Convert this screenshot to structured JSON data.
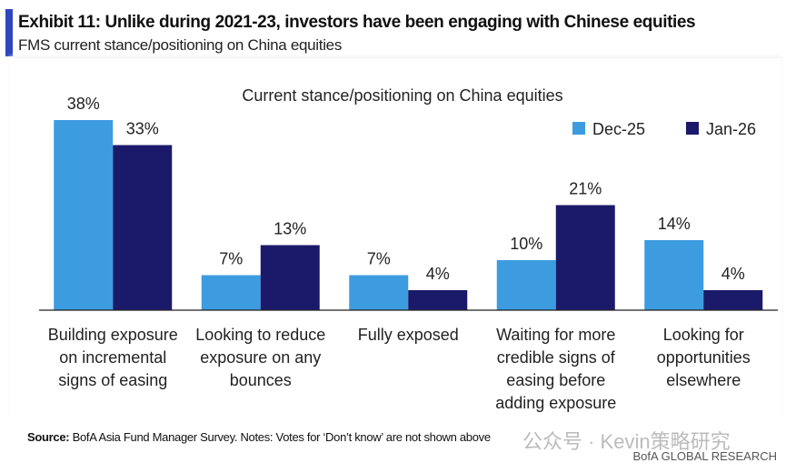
{
  "header": {
    "title": "Exhibit 11: Unlike during 2021-23, investors have been engaging with Chinese equities",
    "subtitle": "FMS current stance/positioning on China equities"
  },
  "chart_data": {
    "type": "bar",
    "title": "Current stance/positioning on China equities",
    "categories": [
      [
        "Building exposure",
        "on incremental",
        "signs of easing"
      ],
      [
        "Looking to reduce",
        "exposure on any",
        "bounces"
      ],
      [
        "Fully exposed"
      ],
      [
        "Waiting for more",
        "credible signs of",
        "easing before",
        "adding exposure"
      ],
      [
        "Looking for",
        "opportunities",
        "elsewhere"
      ]
    ],
    "series": [
      {
        "name": "Dec-25",
        "color": "#3d9be0",
        "values": [
          38,
          7,
          7,
          10,
          14
        ]
      },
      {
        "name": "Jan-26",
        "color": "#1b1a6a",
        "values": [
          33,
          13,
          4,
          21,
          4
        ]
      }
    ],
    "unit": "%",
    "ylim": [
      0,
      40
    ],
    "legend": "top-right",
    "grid": false
  },
  "footer": {
    "source_label": "Source:",
    "source_text": " BofA Asia Fund Manager Survey. Notes: Votes for ‘Don’t know’ are not shown above",
    "watermark": "公众号 · Kevin策略研究",
    "brand": "BofA GLOBAL RESEARCH"
  }
}
